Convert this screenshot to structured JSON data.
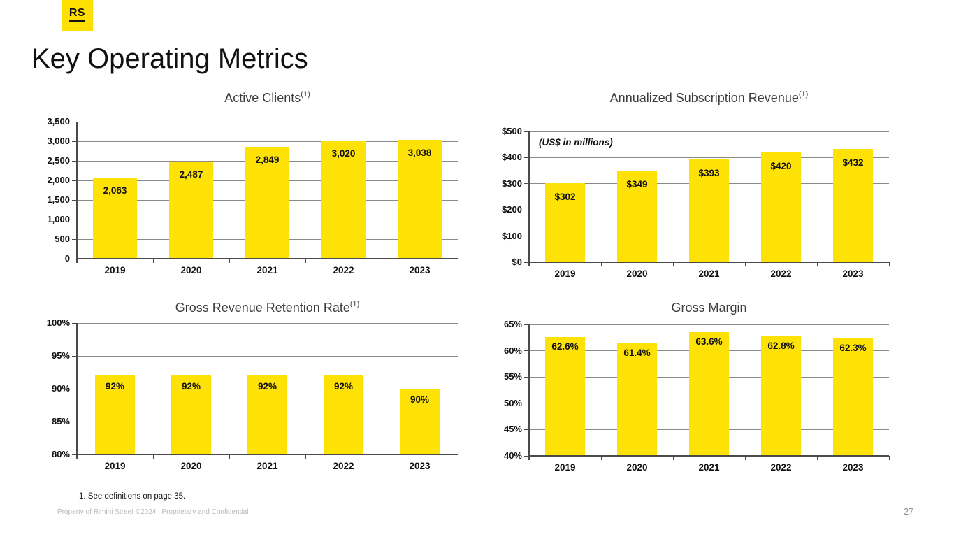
{
  "slide": {
    "logo_text": "RS",
    "title": "Key Operating Metrics",
    "footnote": "1. See definitions on page 35.",
    "footer_left": "Property of Rimini Street ©2024  |  Proprietary and Confidential",
    "page_number": "27"
  },
  "colors": {
    "bar_yellow": "#FFE205",
    "logo_yellow": "#FFDF00",
    "gridline": "#8A8A8A",
    "axis": "#4A4A4A",
    "chart_title_text": "#3D3D3D",
    "footer_gray": "#B9B9B9"
  },
  "chart_data": [
    {
      "type": "bar",
      "title": "Active Clients",
      "title_superscript": "(1)",
      "annotation": "",
      "categories": [
        "2019",
        "2020",
        "2021",
        "2022",
        "2023"
      ],
      "values": [
        2063,
        2487,
        2849,
        3020,
        3038
      ],
      "bar_labels": [
        "2,063",
        "2,487",
        "2,849",
        "3,020",
        "3,038"
      ],
      "ylim": [
        0,
        3500
      ],
      "ytick_step": 500,
      "ytick_labels": [
        "3,500",
        "3,000",
        "2,500",
        "2,000",
        "1,500",
        "1,000",
        "500",
        "0"
      ],
      "grid": true,
      "legend": "none",
      "bar_color": "#FFE205"
    },
    {
      "type": "bar",
      "title": "Annualized Subscription Revenue",
      "title_superscript": "(1)",
      "annotation": "(US$ in millions)",
      "categories": [
        "2019",
        "2020",
        "2021",
        "2022",
        "2023"
      ],
      "values": [
        302,
        349,
        393,
        420,
        432
      ],
      "bar_labels": [
        "$302",
        "$349",
        "$393",
        "$420",
        "$432"
      ],
      "ylim": [
        0,
        500
      ],
      "ytick_step": 100,
      "ytick_labels": [
        "$500",
        "$400",
        "$300",
        "$200",
        "$100",
        "$0"
      ],
      "grid": true,
      "legend": "none",
      "bar_color": "#FFE205"
    },
    {
      "type": "bar",
      "title": "Gross Revenue Retention Rate",
      "title_superscript": "(1)",
      "annotation": "",
      "categories": [
        "2019",
        "2020",
        "2021",
        "2022",
        "2023"
      ],
      "values": [
        92,
        92,
        92,
        92,
        90
      ],
      "bar_labels": [
        "92%",
        "92%",
        "92%",
        "92%",
        "90%"
      ],
      "ylim": [
        80,
        100
      ],
      "ytick_step": 5,
      "ytick_labels": [
        "100%",
        "95%",
        "90%",
        "85%",
        "80%"
      ],
      "grid": true,
      "legend": "none",
      "bar_color": "#FFE205"
    },
    {
      "type": "bar",
      "title": "Gross Margin",
      "title_superscript": "",
      "annotation": "",
      "categories": [
        "2019",
        "2020",
        "2021",
        "2022",
        "2023"
      ],
      "values": [
        62.6,
        61.4,
        63.6,
        62.8,
        62.3
      ],
      "bar_labels": [
        "62.6%",
        "61.4%",
        "63.6%",
        "62.8%",
        "62.3%"
      ],
      "ylim": [
        40,
        65
      ],
      "ytick_step": 5,
      "ytick_labels": [
        "65%",
        "60%",
        "55%",
        "50%",
        "45%",
        "40%"
      ],
      "grid": true,
      "legend": "none",
      "bar_color": "#FFE205"
    }
  ]
}
